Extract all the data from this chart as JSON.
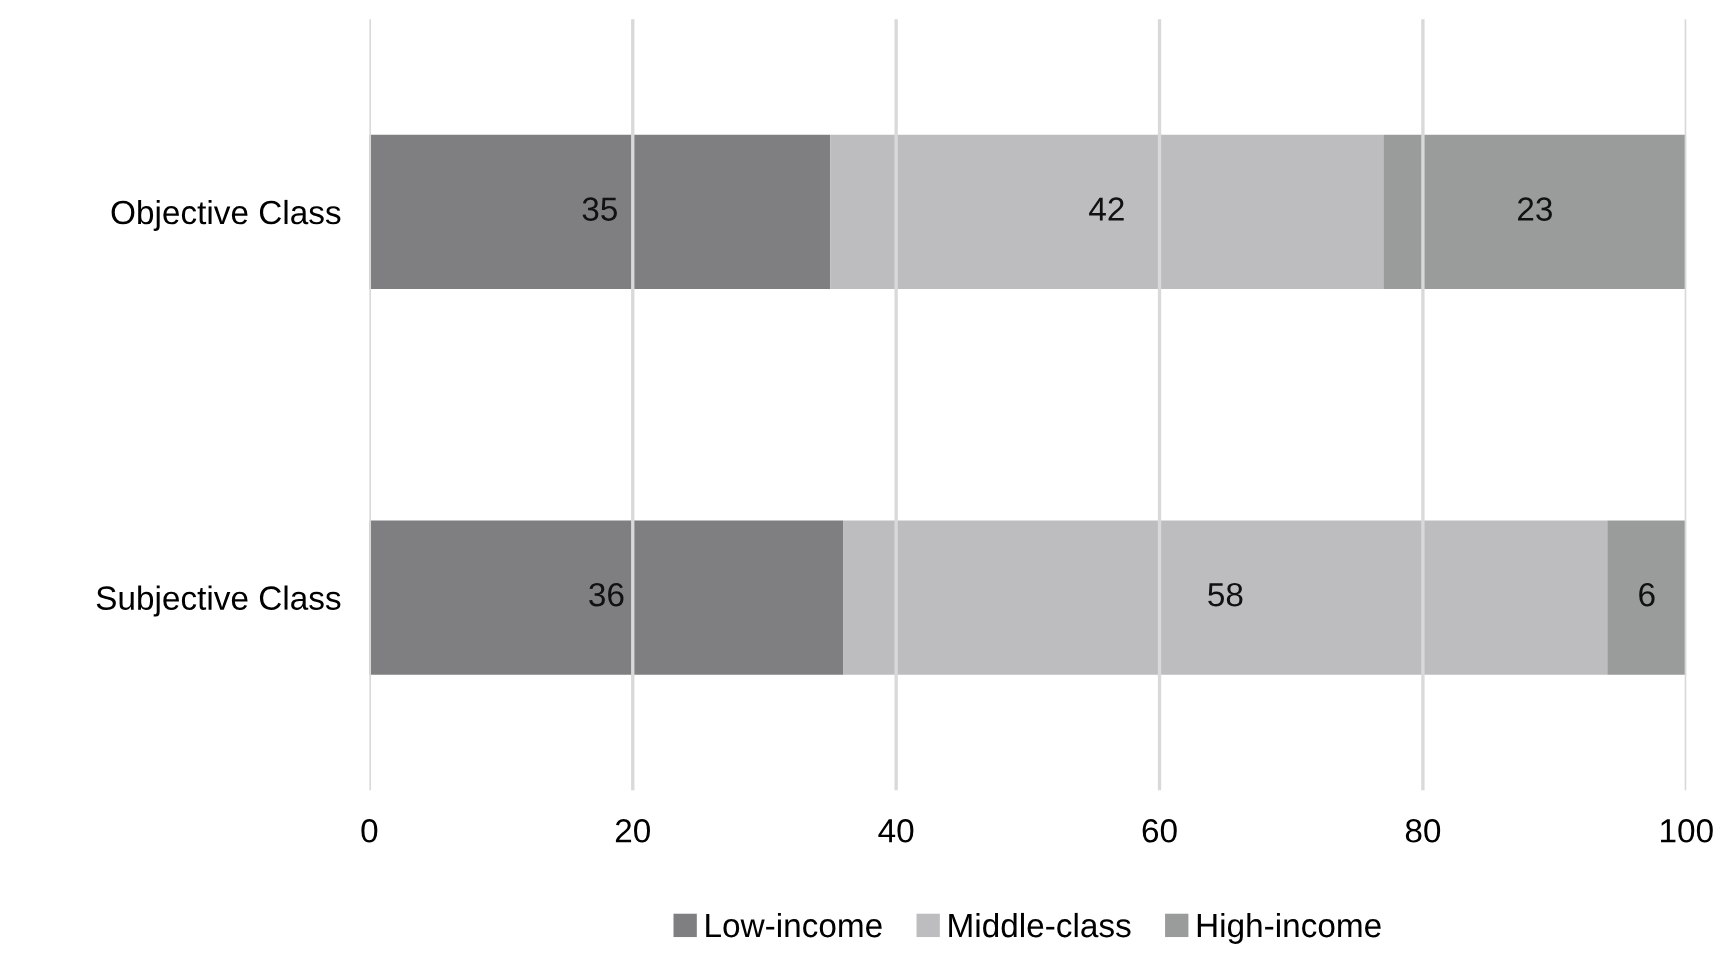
{
  "chart_data": {
    "type": "bar",
    "orientation": "horizontal",
    "stacked": true,
    "categories": [
      "Objective Class",
      "Subjective Class"
    ],
    "series": [
      {
        "name": "Low-income",
        "color": "#7f7f81",
        "values": [
          35,
          36
        ]
      },
      {
        "name": "Middle-class",
        "color": "#bdbdbf",
        "values": [
          42,
          58
        ]
      },
      {
        "name": "High-income",
        "color": "#9a9c9c",
        "values": [
          23,
          6
        ]
      }
    ],
    "xlim": [
      0,
      100
    ],
    "xticks": [
      0,
      20,
      40,
      60,
      80,
      100
    ],
    "grid": "x",
    "legend": "bottom",
    "data_labels": true
  }
}
